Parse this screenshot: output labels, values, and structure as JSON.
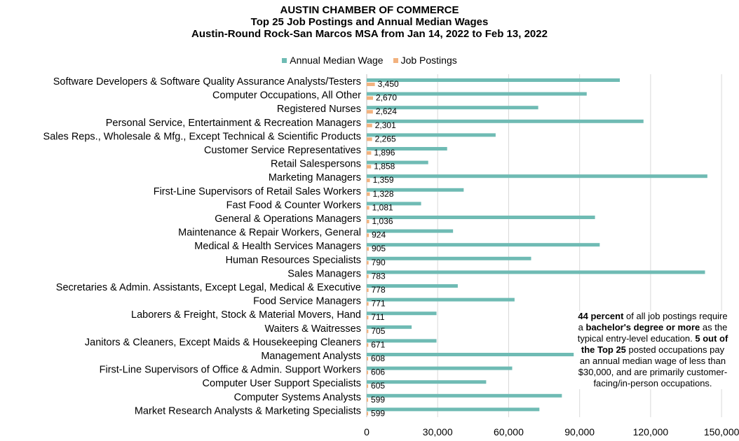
{
  "titles": {
    "line1": "AUSTIN CHAMBER OF COMMERCE",
    "line2": "Top 25 Job Postings and Annual Median Wages",
    "line3": "Austin-Round Rock-San Marcos MSA from Jan 14, 2022 to Feb 13, 2022"
  },
  "colors": {
    "wage": "#6fbbb4",
    "postings": "#f2b27f",
    "grid": "#d9d9d9"
  },
  "note": {
    "p1": "44 percent",
    "p2": " of all job postings require a ",
    "p3": "bachelor's degree or more",
    "p4": " as the typical entry-level education. ",
    "p5": "5 out of the Top 25",
    "p6": " posted occupations pay an annual median wage of less than $30,000, and are primarily customer-facing/in-person occupations."
  },
  "chart_data": {
    "type": "bar",
    "orientation": "horizontal",
    "xlim": [
      0,
      155000
    ],
    "xticks": [
      0,
      30000,
      60000,
      90000,
      120000,
      150000
    ],
    "xtick_labels": [
      "0",
      "30,000",
      "60,000",
      "90,000",
      "120,000",
      "150,000"
    ],
    "grid": true,
    "legend_position": "top",
    "categories": [
      "Software Developers & Software Quality Assurance Analysts/Testers",
      "Computer Occupations, All Other",
      "Registered Nurses",
      "Personal Service, Entertainment & Recreation Managers",
      "Sales Reps., Wholesale & Mfg., Except Technical & Scientific Products",
      "Customer Service Representatives",
      "Retail Salespersons",
      "Marketing Managers",
      "First-Line Supervisors of Retail Sales Workers",
      "Fast Food & Counter Workers",
      "General & Operations Managers",
      "Maintenance & Repair Workers, General",
      "Medical & Health Services Managers",
      "Human Resources Specialists",
      "Sales Managers",
      "Secretaries & Admin. Assistants, Except Legal, Medical & Executive",
      "Food Service Managers",
      "Laborers & Freight, Stock & Material Movers, Hand",
      "Waiters & Waitresses",
      "Janitors & Cleaners, Except Maids & Housekeeping Cleaners",
      "Management Analysts",
      "First-Line Supervisors of Office & Admin. Support Workers",
      "Computer User Support Specialists",
      "Computer Systems Analysts",
      "Market Research Analysts & Marketing Specialists"
    ],
    "series": [
      {
        "name": "Annual Median Wage",
        "values": [
          107000,
          93000,
          72500,
          117000,
          54500,
          34000,
          26000,
          144000,
          41000,
          23000,
          96500,
          36500,
          98500,
          69500,
          143000,
          38500,
          62500,
          29500,
          19000,
          29500,
          87500,
          61500,
          50500,
          82500,
          73000
        ]
      },
      {
        "name": "Job Postings",
        "values": [
          3450,
          2670,
          2624,
          2301,
          2265,
          1896,
          1858,
          1359,
          1328,
          1081,
          1036,
          924,
          905,
          790,
          783,
          778,
          771,
          711,
          705,
          671,
          608,
          606,
          605,
          599,
          599
        ],
        "labels": [
          "3,450",
          "2,670",
          "2,624",
          "2,301",
          "2,265",
          "1,896",
          "1,858",
          "1,359",
          "1,328",
          "1,081",
          "1,036",
          "924",
          "905",
          "790",
          "783",
          "778",
          "771",
          "711",
          "705",
          "671",
          "608",
          "606",
          "605",
          "599",
          "599"
        ]
      }
    ]
  }
}
